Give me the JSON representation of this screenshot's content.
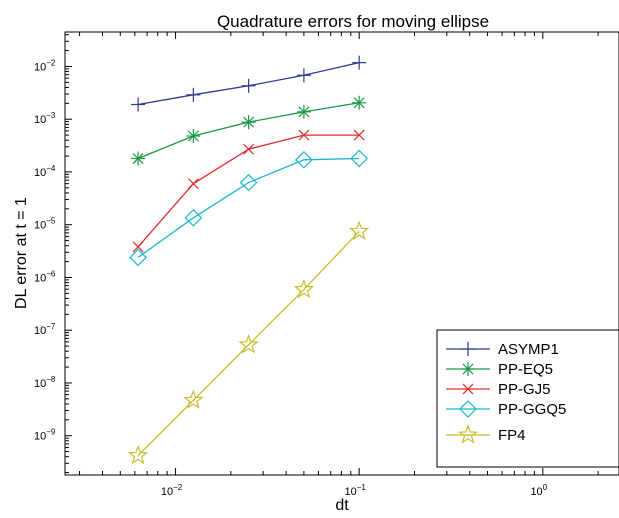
{
  "chart_data": {
    "type": "line",
    "title": "Quadrature errors for moving ellipse",
    "xlabel": "dt",
    "ylabel": "DL error at t = 1",
    "xscale": "log",
    "yscale": "log",
    "xlim": [
      0.0025,
      2.6
    ],
    "ylim": [
      1.8e-10,
      0.045
    ],
    "x_ticks": [
      {
        "value": 0.01,
        "base": "10",
        "exp": "−2"
      },
      {
        "value": 0.1,
        "base": "10",
        "exp": "−1"
      },
      {
        "value": 1,
        "base": "10",
        "exp": "0"
      }
    ],
    "y_ticks": [
      {
        "value": 0.01,
        "base": "10",
        "exp": "−2"
      },
      {
        "value": 0.001,
        "base": "10",
        "exp": "−3"
      },
      {
        "value": 0.0001,
        "base": "10",
        "exp": "−4"
      },
      {
        "value": 1e-05,
        "base": "10",
        "exp": "−5"
      },
      {
        "value": 1e-06,
        "base": "10",
        "exp": "−6"
      },
      {
        "value": 1e-07,
        "base": "10",
        "exp": "−7"
      },
      {
        "value": 1e-08,
        "base": "10",
        "exp": "−8"
      },
      {
        "value": 1e-09,
        "base": "10",
        "exp": "−9"
      }
    ],
    "x": [
      0.00625,
      0.0125,
      0.025,
      0.05,
      0.1
    ],
    "series": [
      {
        "name": "ASYMP1",
        "color": "#2e3a90",
        "marker": "plus",
        "values": [
          0.0019,
          0.0029,
          0.0043,
          0.0068,
          0.0118
        ]
      },
      {
        "name": "PP-EQ5",
        "color": "#1a9a45",
        "marker": "asterisk",
        "values": [
          0.00018,
          0.00048,
          0.00088,
          0.00138,
          0.00205
        ]
      },
      {
        "name": "PP-GJ5",
        "color": "#e02a2a",
        "marker": "x",
        "values": [
          3.8e-06,
          6e-05,
          0.00027,
          0.0005,
          0.0005
        ]
      },
      {
        "name": "PP-GGQ5",
        "color": "#19b6d2",
        "marker": "diamond",
        "values": [
          2.4e-06,
          1.35e-05,
          6.3e-05,
          0.00017,
          0.00018
        ]
      },
      {
        "name": "FP4",
        "color": "#c9bd2c",
        "marker": "star",
        "values": [
          4.2e-10,
          4.7e-09,
          5.3e-08,
          5.9e-07,
          7.5e-06
        ]
      }
    ],
    "legend_position": "bottom-right",
    "grid": false
  }
}
